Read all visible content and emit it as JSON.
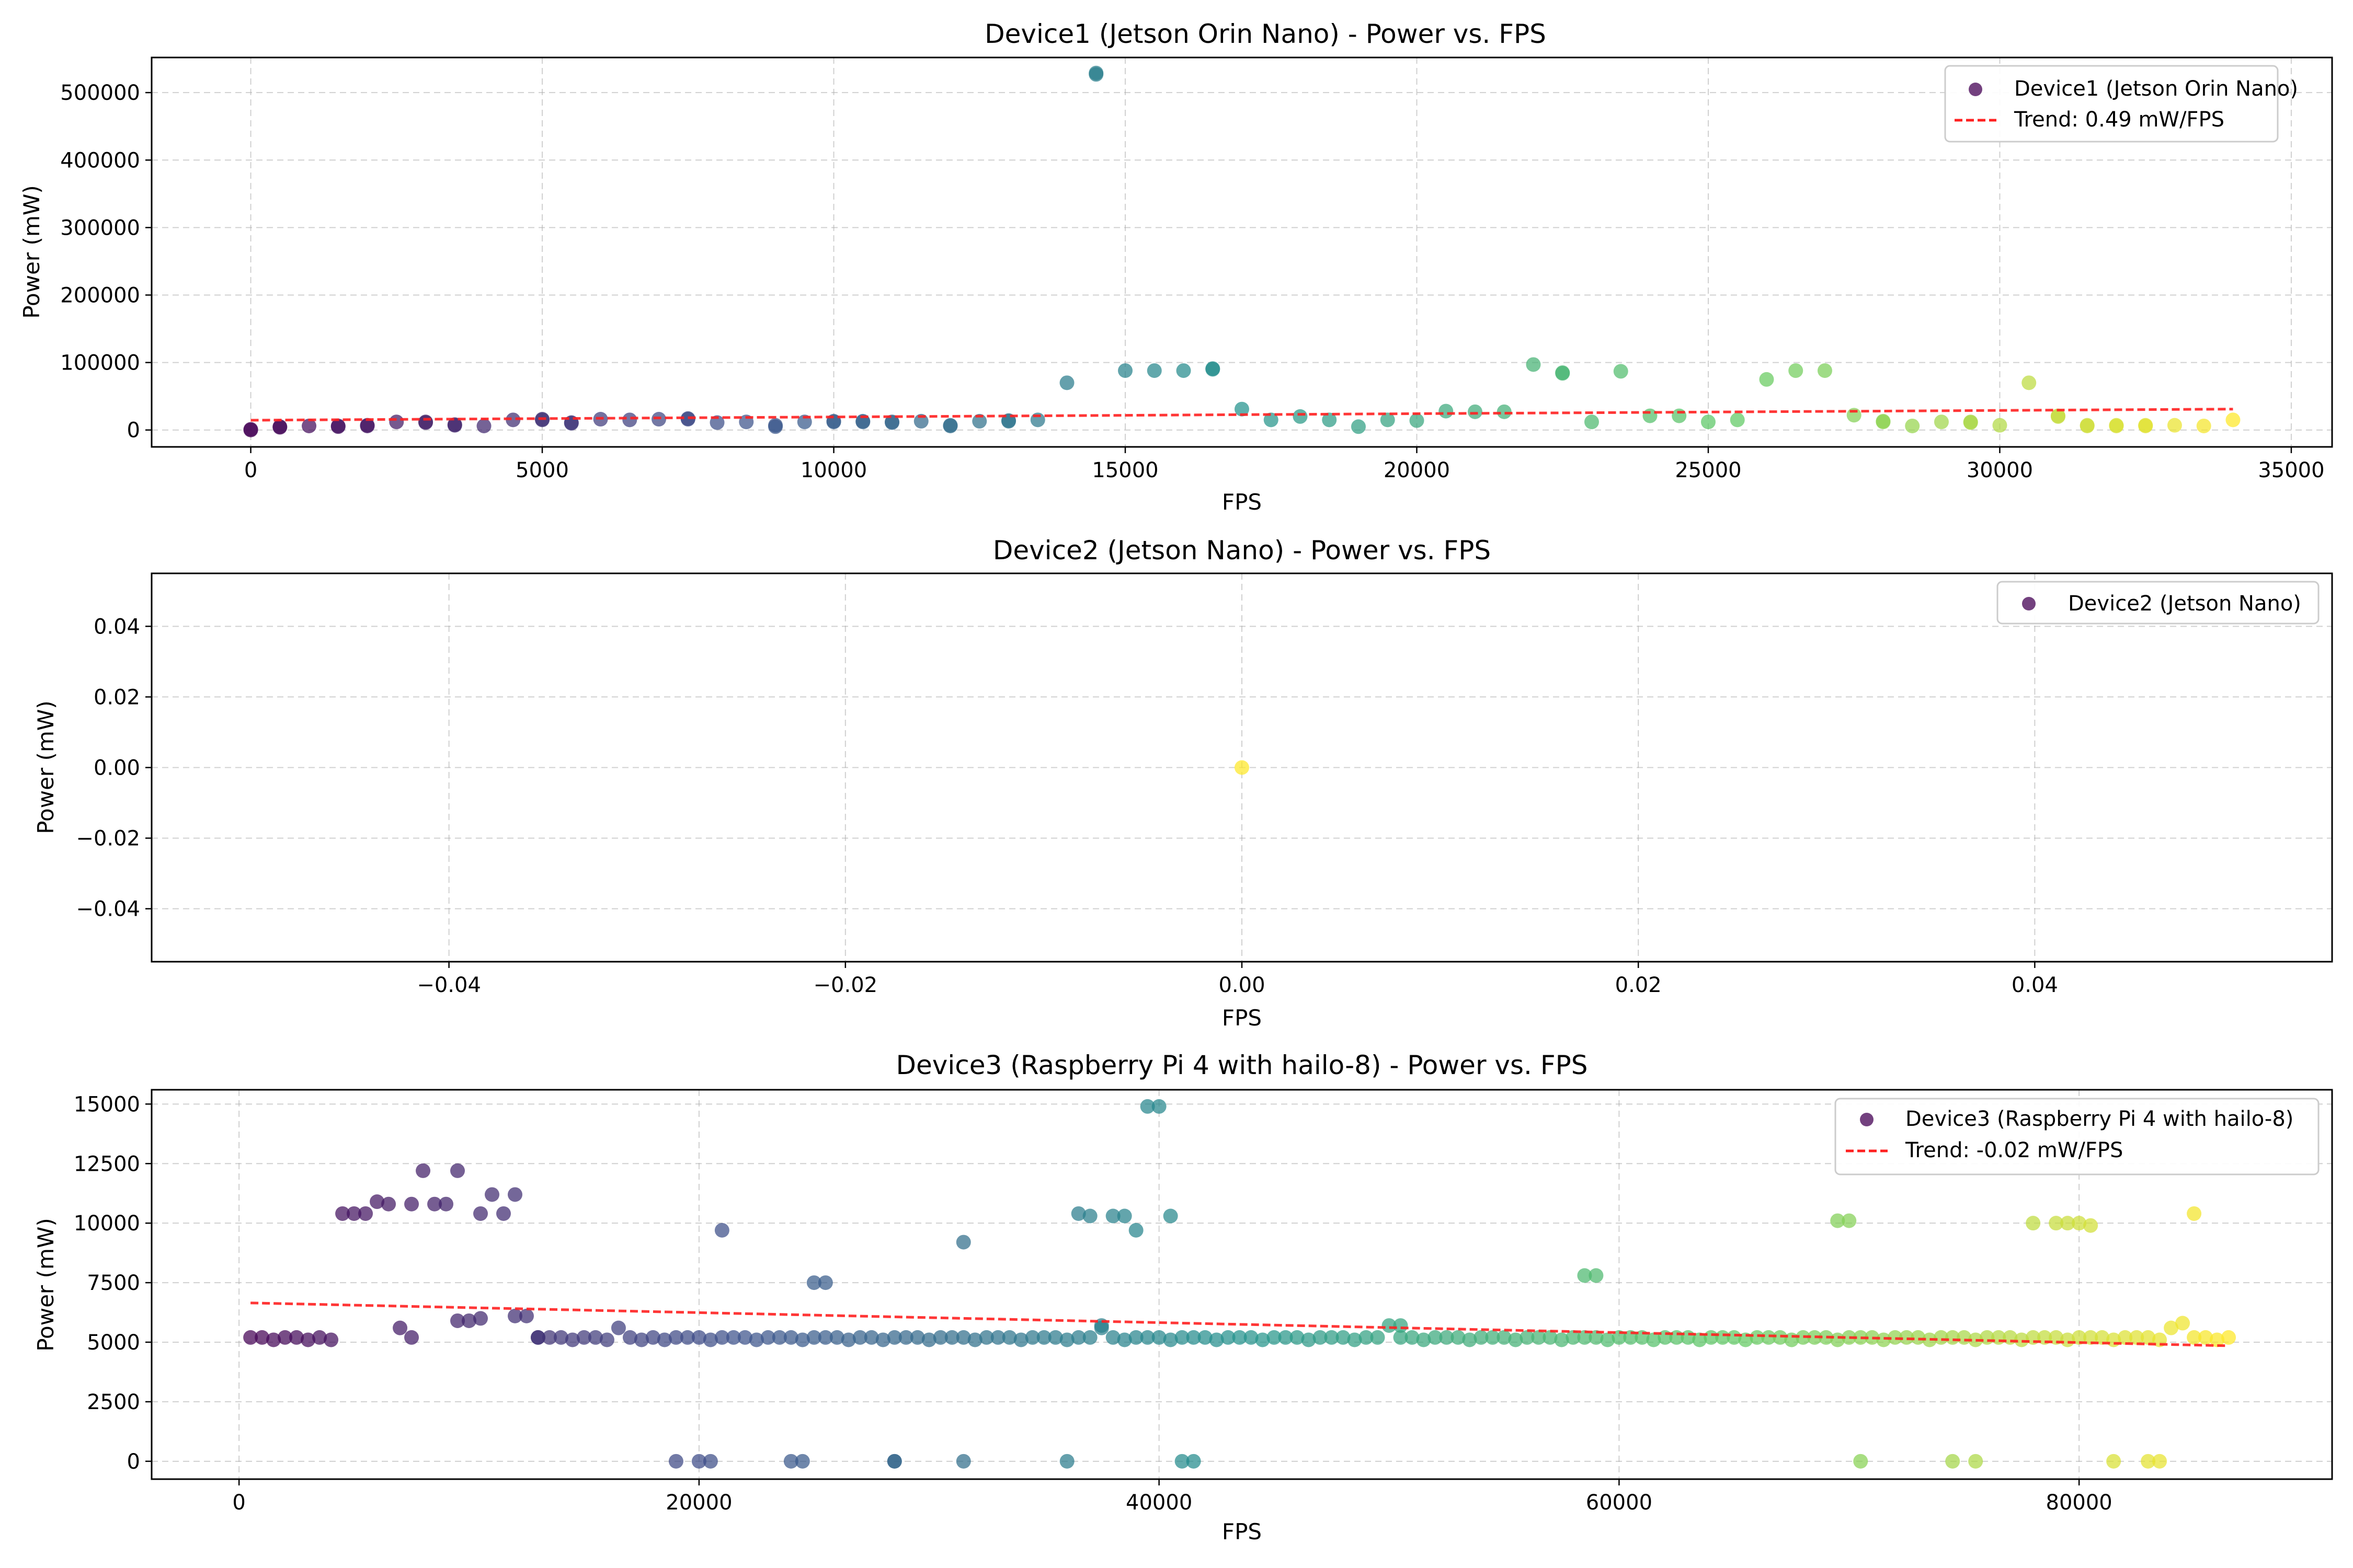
{
  "colors": {
    "trend": "#ff2020",
    "grid": "#b0b0b0",
    "viridis": [
      "#440154",
      "#3b528b",
      "#21918c",
      "#5ec962",
      "#fde725"
    ]
  },
  "chart_data": [
    {
      "type": "scatter",
      "title": "Device1 (Jetson Orin Nano) - Power vs. FPS",
      "xlabel": "FPS",
      "ylabel": "Power (mW)",
      "xlim": [
        -1700,
        35700
      ],
      "ylim": [
        -25000,
        552000
      ],
      "xticks": [
        0,
        5000,
        10000,
        15000,
        20000,
        25000,
        30000,
        35000
      ],
      "xtick_labels": [
        "0",
        "5000",
        "10000",
        "15000",
        "20000",
        "25000",
        "30000",
        "35000"
      ],
      "yticks": [
        0,
        100000,
        200000,
        300000,
        400000,
        500000
      ],
      "ytick_labels": [
        "0",
        "100000",
        "200000",
        "300000",
        "400000",
        "500000"
      ],
      "grid": true,
      "legend_position": "top-right",
      "series": [
        {
          "name": "Device1 (Jetson Orin Nano)",
          "x": [
            0,
            0,
            500,
            500,
            1000,
            1500,
            1500,
            2000,
            2000,
            2500,
            3000,
            3000,
            3500,
            3500,
            4000,
            4500,
            5000,
            5000,
            5500,
            5500,
            6000,
            6500,
            7000,
            7500,
            7500,
            8000,
            8500,
            9000,
            9000,
            9500,
            10000,
            10000,
            10500,
            10500,
            11000,
            11000,
            11500,
            12000,
            12000,
            12500,
            13000,
            13000,
            13500,
            14000,
            14500,
            14500,
            15000,
            15500,
            16000,
            16500,
            16500,
            17000,
            17500,
            18000,
            18500,
            19000,
            19500,
            20000,
            20500,
            21000,
            21500,
            22000,
            22500,
            22500,
            23000,
            23500,
            24000,
            24500,
            25000,
            25500,
            26000,
            26500,
            27000,
            27500,
            28000,
            28000,
            28500,
            29000,
            29500,
            29500,
            30000,
            30500,
            31000,
            31000,
            31500,
            31500,
            32000,
            32000,
            32500,
            32500,
            33000,
            33500,
            34000
          ],
          "y": [
            0,
            1000,
            5000,
            4000,
            6000,
            5000,
            6000,
            7000,
            6000,
            12000,
            12000,
            11000,
            7000,
            8000,
            6000,
            15000,
            15000,
            16000,
            10000,
            11000,
            16000,
            15000,
            16000,
            16000,
            17000,
            11000,
            12000,
            5000,
            7000,
            12000,
            12000,
            13000,
            12000,
            13000,
            12000,
            11000,
            13000,
            6000,
            7000,
            13000,
            13000,
            14000,
            15000,
            70000,
            529000,
            527000,
            88000,
            88000,
            88000,
            91000,
            90000,
            31000,
            15000,
            20000,
            15000,
            5000,
            15000,
            14000,
            28000,
            27000,
            27000,
            97000,
            84000,
            85000,
            12000,
            87000,
            21000,
            21000,
            12000,
            15000,
            75000,
            88000,
            88000,
            22000,
            12000,
            13000,
            6000,
            12000,
            12000,
            11000,
            7000,
            70000,
            21000,
            20000,
            6000,
            7000,
            6000,
            7000,
            6000,
            7000,
            7000,
            6000,
            15000
          ]
        },
        {
          "name": "Trend: 0.49 mW/FPS",
          "x": [
            0,
            34000
          ],
          "y": [
            14500,
            31000
          ]
        }
      ]
    },
    {
      "type": "scatter",
      "title": "Device2 (Jetson Nano) - Power vs. FPS",
      "xlabel": "FPS",
      "ylabel": "Power (mW)",
      "xlim": [
        -0.055,
        0.055
      ],
      "ylim": [
        -0.055,
        0.055
      ],
      "xticks": [
        -0.04,
        -0.02,
        0.0,
        0.02,
        0.04
      ],
      "xtick_labels": [
        "−0.04",
        "−0.02",
        "0.00",
        "0.02",
        "0.04"
      ],
      "yticks": [
        -0.04,
        -0.02,
        0.0,
        0.02,
        0.04
      ],
      "ytick_labels": [
        "−0.04",
        "−0.02",
        "0.00",
        "0.02",
        "0.04"
      ],
      "grid": true,
      "legend_position": "top-right",
      "series": [
        {
          "name": "Device2 (Jetson Nano)",
          "x": [
            0
          ],
          "y": [
            0
          ]
        }
      ]
    },
    {
      "type": "scatter",
      "title": "Device3 (Raspberry Pi 4 with hailo-8) - Power vs. FPS",
      "xlabel": "FPS",
      "ylabel": "Power (mW)",
      "xlim": [
        -3800,
        91000
      ],
      "ylim": [
        -750,
        15600
      ],
      "xticks": [
        0,
        20000,
        40000,
        60000,
        80000
      ],
      "xtick_labels": [
        "0",
        "20000",
        "40000",
        "60000",
        "80000"
      ],
      "yticks": [
        0,
        2500,
        5000,
        7500,
        10000,
        12500,
        15000
      ],
      "ytick_labels": [
        "0",
        "2500",
        "5000",
        "7500",
        "10000",
        "12500",
        "15000"
      ],
      "grid": true,
      "legend_position": "top-right",
      "series": [
        {
          "name": "Device3 (Raspberry Pi 4 with hailo-8)",
          "x": [
            500,
            1000,
            1500,
            2000,
            2500,
            3000,
            3500,
            4000,
            4500,
            5000,
            5500,
            6000,
            6500,
            7000,
            7500,
            8000,
            8500,
            9000,
            9500,
            10000,
            10500,
            11000,
            11500,
            12000,
            12500,
            13000,
            13500,
            14000,
            14500,
            15000,
            15500,
            16000,
            16500,
            17000,
            17500,
            18000,
            18500,
            19000,
            19500,
            20000,
            20500,
            21000,
            21500,
            22000,
            22500,
            23000,
            23500,
            24000,
            24500,
            25000,
            25500,
            26000,
            26500,
            27000,
            27500,
            28000,
            28500,
            29000,
            29500,
            30000,
            30500,
            31000,
            31500,
            32000,
            32500,
            33000,
            33500,
            34000,
            34500,
            35000,
            35500,
            36000,
            36500,
            37000,
            37500,
            38000,
            38500,
            39000,
            39500,
            40000,
            40500,
            41000,
            41500,
            42000,
            42500,
            43000,
            43500,
            44000,
            44500,
            45000,
            45500,
            46000,
            46500,
            47000,
            47500,
            48000,
            48500,
            49000,
            49500,
            50000,
            50500,
            51000,
            51500,
            52000,
            52500,
            53000,
            53500,
            54000,
            54500,
            55000,
            55500,
            56000,
            56500,
            57000,
            57500,
            58000,
            58500,
            59000,
            59500,
            60000,
            60500,
            61000,
            61500,
            62000,
            62500,
            63000,
            63500,
            64000,
            64500,
            65000,
            65500,
            66000,
            66500,
            67000,
            67500,
            68000,
            68500,
            69000,
            69500,
            70000,
            70500,
            71000,
            71500,
            72000,
            72500,
            73000,
            73500,
            74000,
            74500,
            75000,
            75500,
            76000,
            76500,
            77000,
            77500,
            78000,
            78500,
            79000,
            79500,
            80000,
            80500,
            81000,
            81500,
            82000,
            82500,
            83000,
            83500,
            84000,
            84500,
            85000,
            85500,
            86000,
            86500,
            20000,
            24000,
            24500,
            28500,
            31500,
            36000,
            41000,
            41500,
            28500,
            19000,
            20500,
            70500,
            74500,
            75500,
            81500,
            83000,
            83500,
            36500,
            37000,
            38000,
            38500,
            39000,
            40500,
            39500,
            40000,
            25000,
            25500,
            21000,
            31500,
            37500,
            50500,
            12000,
            13000,
            9500,
            7500,
            10500,
            58500,
            59000,
            69500,
            70000,
            78000,
            79000,
            79500,
            80000,
            80500,
            85000
          ],
          "y": [
            5200,
            5200,
            5100,
            5200,
            5200,
            5100,
            5200,
            5100,
            10400,
            10400,
            10400,
            10900,
            10800,
            5600,
            10800,
            12200,
            10800,
            10800,
            12200,
            5900,
            6000,
            11200,
            10400,
            11200,
            6100,
            5200,
            5200,
            5200,
            5100,
            5200,
            5200,
            5100,
            5600,
            5200,
            5100,
            5200,
            5100,
            5200,
            5200,
            5200,
            5100,
            5200,
            5200,
            5200,
            5100,
            5200,
            5200,
            5200,
            5100,
            5200,
            5200,
            5200,
            5100,
            5200,
            5200,
            5100,
            5200,
            5200,
            5200,
            5100,
            5200,
            5200,
            5200,
            5100,
            5200,
            5200,
            5200,
            5100,
            5200,
            5200,
            5200,
            5100,
            5200,
            5200,
            5600,
            5200,
            5100,
            5200,
            5200,
            5200,
            5100,
            5200,
            5200,
            5200,
            5100,
            5200,
            5200,
            5200,
            5100,
            5200,
            5200,
            5200,
            5100,
            5200,
            5200,
            5200,
            5100,
            5200,
            5200,
            5700,
            5200,
            5200,
            5100,
            5200,
            5200,
            5200,
            5100,
            5200,
            5200,
            5200,
            5100,
            5200,
            5200,
            5200,
            5100,
            5200,
            5200,
            5200,
            5100,
            5200,
            5200,
            5200,
            5100,
            5200,
            5200,
            5200,
            5100,
            5200,
            5200,
            5200,
            5100,
            5200,
            5200,
            5200,
            5100,
            5200,
            5200,
            5200,
            5100,
            5200,
            5200,
            5200,
            5100,
            5200,
            5200,
            5200,
            5100,
            5200,
            5200,
            5200,
            5100,
            5200,
            5200,
            5200,
            5100,
            5200,
            5200,
            5200,
            5100,
            5200,
            5200,
            5200,
            5100,
            5200,
            5200,
            5200,
            5100,
            5600,
            5800,
            5200,
            5200,
            5100,
            5200,
            0,
            0,
            0,
            0,
            0,
            0,
            0,
            0,
            0,
            0,
            0,
            0,
            0,
            0,
            0,
            0,
            0,
            10400,
            10300,
            10300,
            10300,
            9700,
            10300,
            14900,
            14900,
            7500,
            7500,
            9700,
            9200,
            5700,
            5700,
            6100,
            5200,
            5900,
            5200,
            10400,
            7800,
            7800,
            10100,
            10100,
            10000,
            10000,
            10000,
            10000,
            9900,
            10400
          ]
        },
        {
          "name": "Trend: -0.02 mW/FPS",
          "x": [
            500,
            86500
          ],
          "y": [
            6650,
            4850
          ]
        }
      ]
    }
  ]
}
